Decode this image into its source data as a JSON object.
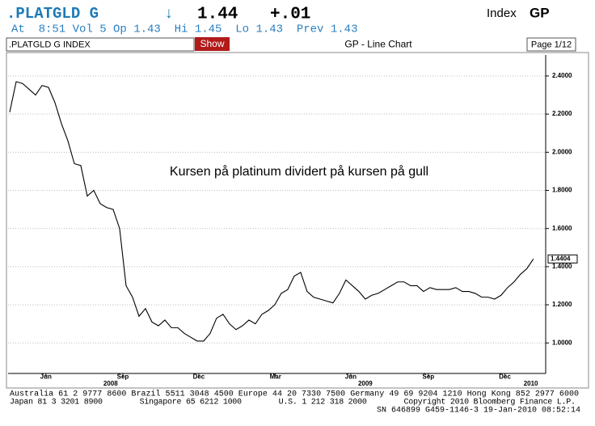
{
  "header": {
    "ticker": ".PLATGLD G",
    "arrow": "↓",
    "price": "1.44",
    "change": "+.01",
    "index_label": "Index",
    "index_code": "GP",
    "quote": "At  8:51 Vol 5 Op 1.43  Hi 1.45  Lo 1.43  Prev 1.43"
  },
  "toolbar": {
    "security": ".PLATGLD G INDEX",
    "button": "Show",
    "chart_name": "GP - Line Chart",
    "page": "Page 1/12"
  },
  "chart_data": {
    "type": "line",
    "annotation": "Kursen på platinum dividert på kursen på gull",
    "series": [
      {
        "name": ".PLATGLD G INDEX",
        "color": "#000000",
        "values": [
          2.21,
          2.37,
          2.36,
          2.33,
          2.3,
          2.35,
          2.34,
          2.26,
          2.15,
          2.06,
          1.94,
          1.93,
          1.77,
          1.8,
          1.73,
          1.71,
          1.7,
          1.6,
          1.3,
          1.24,
          1.14,
          1.18,
          1.11,
          1.09,
          1.12,
          1.08,
          1.08,
          1.05,
          1.03,
          1.01,
          1.01,
          1.05,
          1.13,
          1.15,
          1.1,
          1.07,
          1.09,
          1.12,
          1.1,
          1.15,
          1.17,
          1.2,
          1.26,
          1.28,
          1.35,
          1.37,
          1.27,
          1.24,
          1.23,
          1.22,
          1.21,
          1.26,
          1.33,
          1.3,
          1.27,
          1.23,
          1.25,
          1.26,
          1.28,
          1.3,
          1.32,
          1.32,
          1.3,
          1.3,
          1.27,
          1.29,
          1.28,
          1.28,
          1.28,
          1.29,
          1.27,
          1.27,
          1.26,
          1.24,
          1.24,
          1.23,
          1.25,
          1.29,
          1.32,
          1.36,
          1.39,
          1.4404
        ]
      }
    ],
    "xlim": [
      -0.25,
      82.9
    ],
    "xticks": [
      {
        "value": 5.6,
        "label": "Jun"
      },
      {
        "value": 17.5,
        "label": "Sep"
      },
      {
        "value": 29.25,
        "label": "Dec"
      },
      {
        "value": 41.1,
        "label": "Mar"
      },
      {
        "value": 52.75,
        "label": "Jun"
      },
      {
        "value": 64.75,
        "label": "Sep"
      },
      {
        "value": 76.6,
        "label": "Dec"
      }
    ],
    "years": [
      {
        "value": 15.6,
        "label": "2008"
      },
      {
        "value": 55,
        "label": "2009"
      },
      {
        "value": 80.6,
        "label": "2010"
      }
    ],
    "ylim": [
      0.84,
      2.51
    ],
    "yticks": [
      {
        "value": 1.0,
        "label": "1.0000"
      },
      {
        "value": 1.2,
        "label": "1.2000"
      },
      {
        "value": 1.4,
        "label": "1.4000"
      },
      {
        "value": 1.6,
        "label": "1.6000"
      },
      {
        "value": 1.8,
        "label": "1.8000"
      },
      {
        "value": 2.0,
        "label": "2.0000"
      },
      {
        "value": 2.2,
        "label": "2.2000"
      },
      {
        "value": 2.4,
        "label": "2.4000"
      }
    ],
    "grid": true
  },
  "footer": {
    "lines": [
      "Australia 61 2 9777 8600 Brazil 5511 3048 4500 Europe 44 20 7330 7500 Germany 49 69 9204 1210 Hong Kong 852 2977 6000",
      "Japan 81 3 3201 8900        Singapore 65 6212 1000        U.S. 1 212 318 2000        Copyright 2010 Bloomberg Finance L.P."
    ],
    "stamp": "SN 646899 G459-1146-3 19-Jan-2010 08:52:14"
  }
}
